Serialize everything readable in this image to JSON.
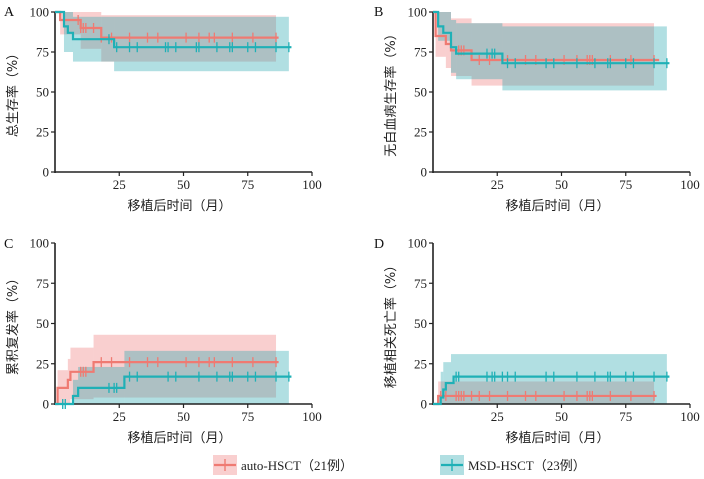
{
  "colors": {
    "auto": "#ef7a72",
    "auto_band": "rgba(240,130,130,0.38)",
    "msd": "#1fb0b6",
    "msd_band": "rgba(40,165,175,0.36)"
  },
  "legend": [
    {
      "key": "auto",
      "label": "auto-HSCT（21例）"
    },
    {
      "key": "msd",
      "label": "MSD-HSCT（23例）"
    }
  ],
  "chart_data": [
    {
      "type": "line",
      "panel": "A",
      "xlabel": "移植后时间（月）",
      "ylabel": "总生存率（%）",
      "xlim": [
        0,
        100
      ],
      "ylim": [
        0,
        100
      ],
      "xticks": [
        25,
        50,
        75,
        100
      ],
      "yticks": [
        0,
        25,
        50,
        75,
        100
      ],
      "series": [
        {
          "name": "auto",
          "start": 100,
          "steps": [
            [
              2,
              95
            ],
            [
              10,
              90
            ],
            [
              18,
              84
            ]
          ],
          "end": 87,
          "band": [
            [
              0,
              100,
              100
            ],
            [
              2,
              86,
              100
            ],
            [
              10,
              77,
              100
            ],
            [
              18,
              69,
              98
            ]
          ],
          "band_end": 86,
          "censors": [
            9,
            10,
            11,
            12,
            15,
            18,
            22,
            29,
            36,
            40,
            51,
            56,
            60,
            62,
            69,
            77,
            86
          ]
        },
        {
          "name": "msd",
          "start": 100,
          "steps": [
            [
              3.5,
              91
            ],
            [
              5,
              87
            ],
            [
              7,
              83
            ],
            [
              23,
              78
            ]
          ],
          "end": 92,
          "band": [
            [
              0,
              100,
              100
            ],
            [
              3.5,
              75,
              100
            ],
            [
              7,
              69,
              97
            ],
            [
              23,
              63,
              97
            ]
          ],
          "band_end": 91,
          "censors": [
            21,
            24,
            29,
            32,
            43,
            44,
            47,
            55,
            56,
            63,
            68,
            69,
            75,
            78,
            86,
            91
          ]
        }
      ]
    },
    {
      "type": "line",
      "panel": "B",
      "xlabel": "移植后时间（月）",
      "ylabel": "无白血病生存率（%）",
      "xlim": [
        0,
        100
      ],
      "ylim": [
        0,
        100
      ],
      "xticks": [
        25,
        50,
        75,
        100
      ],
      "yticks": [
        0,
        25,
        50,
        75,
        100
      ],
      "series": [
        {
          "name": "auto",
          "start": 100,
          "steps": [
            [
              1,
              85
            ],
            [
              5,
              80
            ],
            [
              7,
              76
            ],
            [
              15,
              70
            ]
          ],
          "end": 88,
          "band": [
            [
              0,
              100,
              100
            ],
            [
              1,
              72,
              100
            ],
            [
              5,
              65,
              100
            ],
            [
              7,
              60,
              96
            ],
            [
              15,
              54,
              93
            ]
          ],
          "band_end": 86,
          "censors": [
            10,
            11,
            12,
            18,
            22,
            29,
            36,
            40,
            51,
            56,
            60,
            61,
            62,
            69,
            77,
            86
          ]
        },
        {
          "name": "msd",
          "start": 100,
          "steps": [
            [
              2,
              91
            ],
            [
              4,
              87
            ],
            [
              7,
              78
            ],
            [
              9,
              74
            ],
            [
              27,
              68
            ]
          ],
          "end": 92,
          "band": [
            [
              0,
              100,
              100
            ],
            [
              2,
              82,
              100
            ],
            [
              7,
              62,
              95
            ],
            [
              9,
              58,
              93
            ],
            [
              27,
              51,
              91
            ]
          ],
          "band_end": 91,
          "censors": [
            21,
            23,
            24,
            29,
            32,
            44,
            47,
            56,
            63,
            68,
            69,
            75,
            78,
            86,
            91
          ]
        }
      ]
    },
    {
      "type": "line",
      "panel": "C",
      "xlabel": "移植后时间（月）",
      "ylabel": "累积复发率（%）",
      "xlim": [
        0,
        100
      ],
      "ylim": [
        0,
        100
      ],
      "xticks": [
        25,
        50,
        75,
        100
      ],
      "yticks": [
        0,
        25,
        50,
        75,
        100
      ],
      "series": [
        {
          "name": "auto",
          "start": 0,
          "steps": [
            [
              1,
              10
            ],
            [
              5,
              15
            ],
            [
              6,
              20
            ],
            [
              15,
              26
            ]
          ],
          "end": 87,
          "band": [
            [
              1,
              0,
              21
            ],
            [
              5,
              0,
              28
            ],
            [
              6,
              3,
              35
            ],
            [
              15,
              4,
              43
            ]
          ],
          "band_end": 86,
          "censors": [
            10,
            11,
            12,
            18,
            22,
            29,
            36,
            40,
            51,
            56,
            60,
            62,
            69,
            77,
            86
          ]
        },
        {
          "name": "msd",
          "start": 0,
          "steps": [
            [
              7,
              5
            ],
            [
              9,
              10
            ],
            [
              27,
              17
            ]
          ],
          "end": 92,
          "band": [
            [
              7,
              0,
              15
            ],
            [
              9,
              0,
              23
            ],
            [
              27,
              0,
              33
            ]
          ],
          "band_end": 91,
          "censors": [
            3,
            4,
            21,
            23,
            24,
            29,
            32,
            44,
            47,
            56,
            63,
            68,
            69,
            75,
            78,
            86,
            91
          ]
        }
      ]
    },
    {
      "type": "line",
      "panel": "D",
      "xlabel": "移植后时间（月）",
      "ylabel": "移植相关死亡率（%）",
      "xlim": [
        0,
        100
      ],
      "ylim": [
        0,
        100
      ],
      "xticks": [
        25,
        50,
        75,
        100
      ],
      "yticks": [
        0,
        25,
        50,
        75,
        100
      ],
      "series": [
        {
          "name": "auto",
          "start": 0,
          "steps": [
            [
              2,
              5
            ]
          ],
          "end": 87,
          "band": [
            [
              2,
              0,
              14
            ]
          ],
          "band_end": 86,
          "censors": [
            3,
            5,
            9,
            10,
            11,
            12,
            15,
            18,
            22,
            29,
            36,
            40,
            51,
            56,
            60,
            61,
            62,
            69,
            77,
            86
          ]
        },
        {
          "name": "msd",
          "start": 0,
          "steps": [
            [
              3,
              4
            ],
            [
              4,
              9
            ],
            [
              5,
              13
            ],
            [
              8,
              17
            ]
          ],
          "end": 92,
          "band": [
            [
              3,
              0,
              20
            ],
            [
              4,
              0,
              26
            ],
            [
              7,
              0,
              31
            ]
          ],
          "band_end": 91,
          "censors": [
            9,
            10,
            21,
            23,
            24,
            27,
            29,
            32,
            44,
            47,
            56,
            63,
            68,
            69,
            75,
            78,
            86,
            91
          ]
        }
      ]
    }
  ]
}
